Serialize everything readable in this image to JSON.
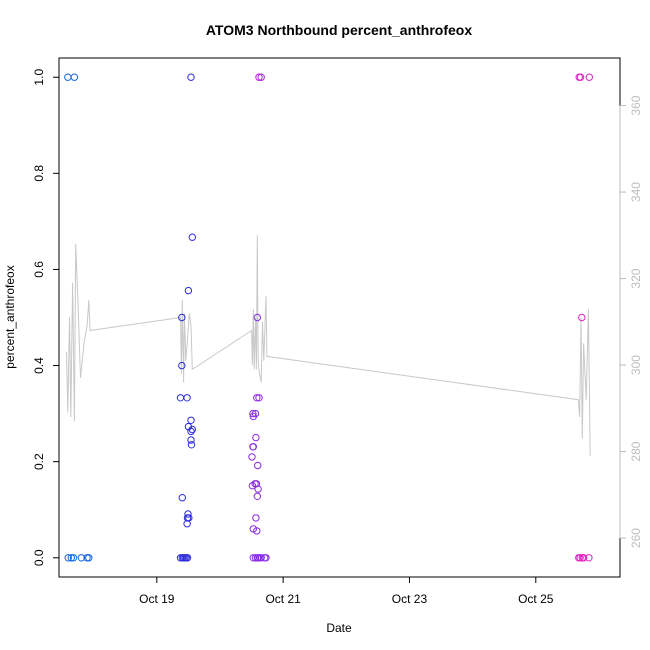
{
  "chart_data": {
    "type": "scatter",
    "title": "ATOM3 Northbound percent_anthrofeox",
    "xlabel": "Date",
    "ylabel": "percent_anthrofeox",
    "xlim": [
      "2023-10-17 10:50",
      "2023-10-26 08:00"
    ],
    "ylim": [
      -0.04,
      1.04
    ],
    "x_ticks": [
      {
        "label": "Oct 19",
        "x": "2023-10-19 00:00"
      },
      {
        "label": "Oct 21",
        "x": "2023-10-21 00:00"
      },
      {
        "label": "Oct 23",
        "x": "2023-10-23 00:00"
      },
      {
        "label": "Oct 25",
        "x": "2023-10-25 00:00"
      }
    ],
    "y_ticks": [
      0.0,
      0.2,
      0.4,
      0.6,
      0.8,
      1.0
    ],
    "y_tick_labels": [
      "0.0",
      "0.2",
      "0.4",
      "0.6",
      "0.8",
      "1.0"
    ],
    "secondary_axis": {
      "ticks": [
        260,
        280,
        300,
        320,
        340,
        360
      ],
      "ylim": [
        251,
        371
      ],
      "color": "#bdbdbd"
    },
    "grid": false,
    "legend": "none",
    "points": [
      {
        "x": "2023-10-17 14:10",
        "y": 1.0,
        "color": "#1565e0"
      },
      {
        "x": "2023-10-17 16:40",
        "y": 1.0,
        "color": "#1565e0"
      },
      {
        "x": "2023-10-17 14:20",
        "y": 0.0,
        "color": "#1565e0"
      },
      {
        "x": "2023-10-17 15:30",
        "y": 0.0,
        "color": "#1565e0"
      },
      {
        "x": "2023-10-17 16:20",
        "y": 0.0,
        "color": "#1565e0"
      },
      {
        "x": "2023-10-17 19:20",
        "y": 0.0,
        "color": "#1565e0"
      },
      {
        "x": "2023-10-17 21:30",
        "y": 0.0,
        "color": "#1565e0"
      },
      {
        "x": "2023-10-17 22:10",
        "y": 0.0,
        "color": "#1565e0"
      },
      {
        "x": "2023-10-19 09:30",
        "y": 0.5,
        "color": "#2d2ddc"
      },
      {
        "x": "2023-10-19 09:30",
        "y": 0.4,
        "color": "#2d2ddc"
      },
      {
        "x": "2023-10-19 09:00",
        "y": 0.333,
        "color": "#2d2ddc"
      },
      {
        "x": "2023-10-19 11:30",
        "y": 0.333,
        "color": "#2d2ddc"
      },
      {
        "x": "2023-10-19 09:40",
        "y": 0.125,
        "color": "#2d2ddc"
      },
      {
        "x": "2023-10-19 12:00",
        "y": 0.556,
        "color": "#2d2ddc"
      },
      {
        "x": "2023-10-19 13:30",
        "y": 0.667,
        "color": "#2d2ddc"
      },
      {
        "x": "2023-10-19 13:00",
        "y": 1.0,
        "color": "#2d2ddc"
      },
      {
        "x": "2023-10-19 12:00",
        "y": 0.273,
        "color": "#2d2ddc"
      },
      {
        "x": "2023-10-19 13:00",
        "y": 0.286,
        "color": "#2d2ddc"
      },
      {
        "x": "2023-10-19 13:30",
        "y": 0.267,
        "color": "#2d2ddc"
      },
      {
        "x": "2023-10-19 13:00",
        "y": 0.263,
        "color": "#2d2ddc"
      },
      {
        "x": "2023-10-19 13:00",
        "y": 0.245,
        "color": "#2d2ddc"
      },
      {
        "x": "2023-10-19 13:10",
        "y": 0.235,
        "color": "#2d2ddc"
      },
      {
        "x": "2023-10-19 11:50",
        "y": 0.091,
        "color": "#2d2ddc"
      },
      {
        "x": "2023-10-19 11:40",
        "y": 0.083,
        "color": "#2d2ddc"
      },
      {
        "x": "2023-10-19 12:10",
        "y": 0.083,
        "color": "#2d2ddc"
      },
      {
        "x": "2023-10-19 11:30",
        "y": 0.071,
        "color": "#2d2ddc"
      },
      {
        "x": "2023-10-19 09:00",
        "y": 0.0,
        "color": "#2d2ddc"
      },
      {
        "x": "2023-10-19 09:40",
        "y": 0.0,
        "color": "#2d2ddc"
      },
      {
        "x": "2023-10-19 10:10",
        "y": 0.0,
        "color": "#2d2ddc"
      },
      {
        "x": "2023-10-19 10:40",
        "y": 0.0,
        "color": "#2d2ddc"
      },
      {
        "x": "2023-10-19 11:10",
        "y": 0.0,
        "color": "#2d2ddc"
      },
      {
        "x": "2023-10-19 11:40",
        "y": 0.0,
        "color": "#2d2ddc"
      },
      {
        "x": "2023-10-20 14:50",
        "y": 1.0,
        "color": "#b020e0"
      },
      {
        "x": "2023-10-20 15:40",
        "y": 1.0,
        "color": "#b020e0"
      },
      {
        "x": "2023-10-20 14:10",
        "y": 0.5,
        "color": "#8a2be2"
      },
      {
        "x": "2023-10-20 14:00",
        "y": 0.333,
        "color": "#8a2be2"
      },
      {
        "x": "2023-10-20 14:50",
        "y": 0.333,
        "color": "#8a2be2"
      },
      {
        "x": "2023-10-20 12:30",
        "y": 0.3,
        "color": "#8a2be2"
      },
      {
        "x": "2023-10-20 13:30",
        "y": 0.3,
        "color": "#8a2be2"
      },
      {
        "x": "2023-10-20 12:40",
        "y": 0.294,
        "color": "#8a2be2"
      },
      {
        "x": "2023-10-20 13:40",
        "y": 0.25,
        "color": "#8a2be2"
      },
      {
        "x": "2023-10-20 12:30",
        "y": 0.231,
        "color": "#8a2be2"
      },
      {
        "x": "2023-10-20 12:40",
        "y": 0.231,
        "color": "#8a2be2"
      },
      {
        "x": "2023-10-20 12:10",
        "y": 0.21,
        "color": "#8a2be2"
      },
      {
        "x": "2023-10-20 14:20",
        "y": 0.192,
        "color": "#8a2be2"
      },
      {
        "x": "2023-10-20 12:20",
        "y": 0.15,
        "color": "#8a2be2"
      },
      {
        "x": "2023-10-20 13:20",
        "y": 0.154,
        "color": "#8a2be2"
      },
      {
        "x": "2023-10-20 13:50",
        "y": 0.154,
        "color": "#8a2be2"
      },
      {
        "x": "2023-10-20 14:30",
        "y": 0.143,
        "color": "#8a2be2"
      },
      {
        "x": "2023-10-20 14:10",
        "y": 0.128,
        "color": "#8a2be2"
      },
      {
        "x": "2023-10-20 13:40",
        "y": 0.083,
        "color": "#8a2be2"
      },
      {
        "x": "2023-10-20 12:40",
        "y": 0.06,
        "color": "#8a2be2"
      },
      {
        "x": "2023-10-20 14:00",
        "y": 0.056,
        "color": "#8a2be2"
      },
      {
        "x": "2023-10-20 12:40",
        "y": 0.0,
        "color": "#8a2be2"
      },
      {
        "x": "2023-10-20 13:30",
        "y": 0.0,
        "color": "#8a2be2"
      },
      {
        "x": "2023-10-20 14:10",
        "y": 0.0,
        "color": "#8a2be2"
      },
      {
        "x": "2023-10-20 14:30",
        "y": 0.0,
        "color": "#8a2be2"
      },
      {
        "x": "2023-10-20 15:10",
        "y": 0.0,
        "color": "#8a2be2"
      },
      {
        "x": "2023-10-20 15:40",
        "y": 0.0,
        "color": "#8a2be2"
      },
      {
        "x": "2023-10-20 17:00",
        "y": 0.0,
        "color": "#8a2be2"
      },
      {
        "x": "2023-10-20 17:30",
        "y": 0.0,
        "color": "#8a2be2"
      },
      {
        "x": "2023-10-25 16:30",
        "y": 1.0,
        "color": "#e020c0"
      },
      {
        "x": "2023-10-25 17:00",
        "y": 1.0,
        "color": "#e020c0"
      },
      {
        "x": "2023-10-25 20:20",
        "y": 1.0,
        "color": "#e020c0"
      },
      {
        "x": "2023-10-25 17:30",
        "y": 0.5,
        "color": "#e020c0"
      },
      {
        "x": "2023-10-25 16:20",
        "y": 0.0,
        "color": "#e020c0"
      },
      {
        "x": "2023-10-25 16:50",
        "y": 0.0,
        "color": "#e020c0"
      },
      {
        "x": "2023-10-25 17:40",
        "y": 0.0,
        "color": "#e020c0"
      },
      {
        "x": "2023-10-25 18:10",
        "y": 0.0,
        "color": "#e020c0"
      },
      {
        "x": "2023-10-25 20:10",
        "y": 0.0,
        "color": "#e020c0"
      }
    ],
    "line_series": {
      "axis": "secondary",
      "color": "#c8c8c8",
      "points": [
        [
          "2023-10-17 13:40",
          303
        ],
        [
          "2023-10-17 14:10",
          289
        ],
        [
          "2023-10-17 14:50",
          311
        ],
        [
          "2023-10-17 15:20",
          288
        ],
        [
          "2023-10-17 16:00",
          319
        ],
        [
          "2023-10-17 16:40",
          287
        ],
        [
          "2023-10-17 17:10",
          328
        ],
        [
          "2023-10-17 18:00",
          315
        ],
        [
          "2023-10-17 19:00",
          297
        ],
        [
          "2023-10-17 20:20",
          305
        ],
        [
          "2023-10-17 21:30",
          309
        ],
        [
          "2023-10-17 22:10",
          315
        ],
        [
          "2023-10-17 22:40",
          308
        ],
        [
          "2023-10-19 09:00",
          311
        ],
        [
          "2023-10-19 09:20",
          298
        ],
        [
          "2023-10-19 09:40",
          315
        ],
        [
          "2023-10-19 10:10",
          296
        ],
        [
          "2023-10-19 10:30",
          312
        ],
        [
          "2023-10-19 11:00",
          301
        ],
        [
          "2023-10-19 11:40",
          306
        ],
        [
          "2023-10-19 12:20",
          312
        ],
        [
          "2023-10-19 13:00",
          309
        ],
        [
          "2023-10-19 13:30",
          299
        ],
        [
          "2023-10-20 12:00",
          308
        ],
        [
          "2023-10-20 12:20",
          300
        ],
        [
          "2023-10-20 12:40",
          313
        ],
        [
          "2023-10-20 13:00",
          299
        ],
        [
          "2023-10-20 13:30",
          311
        ],
        [
          "2023-10-20 13:50",
          299
        ],
        [
          "2023-10-20 14:10",
          330
        ],
        [
          "2023-10-20 14:30",
          301
        ],
        [
          "2023-10-20 15:00",
          298
        ],
        [
          "2023-10-20 15:40",
          296
        ],
        [
          "2023-10-20 16:10",
          310
        ],
        [
          "2023-10-20 16:40",
          301
        ],
        [
          "2023-10-20 17:30",
          316
        ],
        [
          "2023-10-20 17:50",
          302
        ],
        [
          "2023-10-25 16:10",
          292
        ],
        [
          "2023-10-25 16:40",
          288
        ],
        [
          "2023-10-25 17:10",
          311
        ],
        [
          "2023-10-25 17:40",
          283
        ],
        [
          "2023-10-25 18:10",
          305
        ],
        [
          "2023-10-25 19:10",
          292
        ],
        [
          "2023-10-25 20:00",
          313
        ],
        [
          "2023-10-25 20:40",
          279
        ]
      ]
    }
  }
}
